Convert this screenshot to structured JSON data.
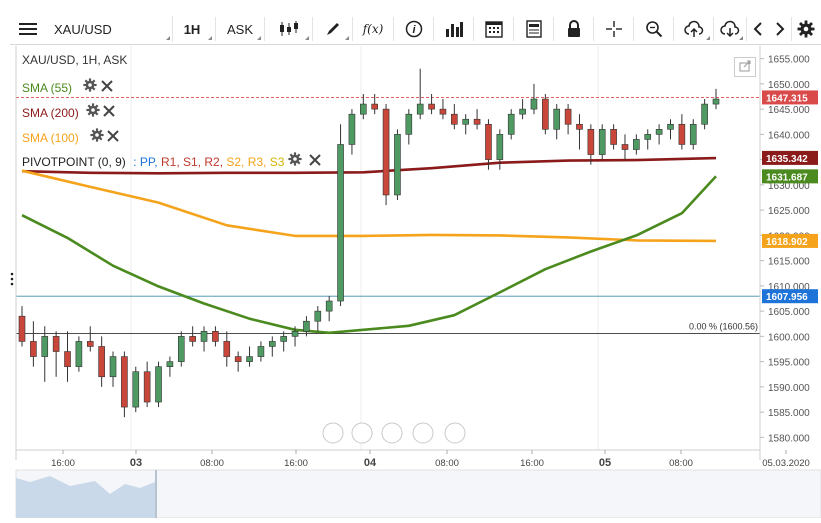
{
  "toolbar": {
    "symbol": "XAU/USD",
    "interval": "1H",
    "price_type": "ASK",
    "buttons": [
      "menu-icon",
      "candles-icon",
      "draw-icon",
      "fx-icon",
      "info-icon",
      "bars-icon",
      "calendar-icon",
      "news-icon",
      "lock-icon",
      "crosshair-icon",
      "zoom-icon",
      "upload-icon",
      "download-icon",
      "prev-icon",
      "next-icon",
      "settings-icon"
    ],
    "fx_label": "f(x)"
  },
  "header": {
    "title": "XAU/USD, 1H, ASK"
  },
  "legend": {
    "sma55": {
      "label": "SMA (55)",
      "color": "#4a8a1e"
    },
    "sma200": {
      "label": "SMA (200)",
      "color": "#8b1a1a"
    },
    "sma100": {
      "label": "SMA (100)",
      "color": "#f5a31a"
    },
    "pivot": {
      "label": "PIVOTPOINT (0, 9)",
      "colon": ":",
      "items": [
        {
          "label": "PP",
          "color": "#1e73d8"
        },
        {
          "label": "R1",
          "color": "#c0392b"
        },
        {
          "label": "S1",
          "color": "#c0392b"
        },
        {
          "label": "R2",
          "color": "#c0392b"
        },
        {
          "label": "S2",
          "color": "#f5a31a"
        },
        {
          "label": "R3",
          "color": "#f5a31a"
        },
        {
          "label": "S3",
          "color": "#d4b400"
        }
      ]
    }
  },
  "chart_data": {
    "type": "candlestick",
    "title": "XAU/USD, 1H, ASK",
    "ylim": [
      1577.5,
      1657.5
    ],
    "y_ticks": [
      1580,
      1585,
      1590,
      1595,
      1600,
      1605,
      1610,
      1615,
      1620,
      1625,
      1630,
      1635,
      1640,
      1645,
      1650,
      1655
    ],
    "y_tick_labels": [
      "1580.000",
      "1585.000",
      "1590.000",
      "1595.000",
      "1600.000",
      "1605.000",
      "1610.000",
      "1615.000",
      "1620.000",
      "1625.000",
      "1630.000",
      "1635.000",
      "1640.000",
      "1645.000",
      "1650.000",
      "1655.000"
    ],
    "x_tick_labels": [
      "16:00",
      "03",
      "08:00",
      "16:00",
      "04",
      "08:00",
      "16:00",
      "05",
      "08:00",
      "05.03.2020"
    ],
    "bold_x_labels": [
      "03",
      "04",
      "05"
    ],
    "price_labels": [
      {
        "text": "1647.315",
        "value": 1647.315,
        "color": "#d94a4a"
      },
      {
        "text": "1635.342",
        "value": 1635.342,
        "color": "#8b1a1a"
      },
      {
        "text": "1631.687",
        "value": 1631.687,
        "color": "#4a8a1e"
      },
      {
        "text": "1618.902",
        "value": 1618.902,
        "color": "#f5a31a"
      },
      {
        "text": "1607.956",
        "value": 1607.956,
        "color": "#1e73d8"
      }
    ],
    "fib_label": "0.00 % (1600.56)",
    "fib_value": 1600.56,
    "up_color": "#4f9a63",
    "down_color": "#c8473a",
    "candles": [
      [
        1604,
        1606,
        1598,
        1599
      ],
      [
        1599,
        1603,
        1594,
        1596
      ],
      [
        1596,
        1602,
        1591,
        1600
      ],
      [
        1600,
        1601,
        1592,
        1597
      ],
      [
        1597,
        1601,
        1591,
        1594
      ],
      [
        1594,
        1600,
        1593,
        1599
      ],
      [
        1599,
        1602,
        1597,
        1598
      ],
      [
        1598,
        1600,
        1590,
        1592
      ],
      [
        1592,
        1597,
        1590,
        1596
      ],
      [
        1596,
        1597,
        1584,
        1586
      ],
      [
        1586,
        1594,
        1585,
        1593
      ],
      [
        1593,
        1595,
        1586,
        1587
      ],
      [
        1587,
        1595,
        1586,
        1594
      ],
      [
        1594,
        1596,
        1592,
        1595
      ],
      [
        1595,
        1601,
        1594,
        1600
      ],
      [
        1600,
        1602,
        1598,
        1599
      ],
      [
        1599,
        1602,
        1597,
        1601
      ],
      [
        1601,
        1602,
        1598,
        1599
      ],
      [
        1599,
        1601,
        1594,
        1596
      ],
      [
        1596,
        1597,
        1593,
        1595
      ],
      [
        1595,
        1598,
        1594,
        1596
      ],
      [
        1596,
        1599,
        1595,
        1598
      ],
      [
        1598,
        1600,
        1596,
        1599
      ],
      [
        1599,
        1601,
        1597,
        1600
      ],
      [
        1600,
        1602,
        1598,
        1601
      ],
      [
        1601,
        1604,
        1600,
        1603
      ],
      [
        1603,
        1606,
        1601,
        1605
      ],
      [
        1605,
        1608,
        1603,
        1607
      ],
      [
        1607,
        1642,
        1606,
        1638
      ],
      [
        1638,
        1645,
        1636,
        1644
      ],
      [
        1644,
        1648,
        1643,
        1646
      ],
      [
        1646,
        1648,
        1644,
        1645
      ],
      [
        1645,
        1646,
        1626,
        1628
      ],
      [
        1628,
        1641,
        1627,
        1640
      ],
      [
        1640,
        1645,
        1638,
        1644
      ],
      [
        1644,
        1653,
        1643,
        1646
      ],
      [
        1646,
        1648,
        1644,
        1645
      ],
      [
        1645,
        1647,
        1643,
        1644
      ],
      [
        1644,
        1646,
        1641,
        1642
      ],
      [
        1642,
        1644,
        1640,
        1643
      ],
      [
        1643,
        1645,
        1641,
        1642
      ],
      [
        1642,
        1643,
        1633,
        1635
      ],
      [
        1635,
        1641,
        1633,
        1640
      ],
      [
        1640,
        1645,
        1639,
        1644
      ],
      [
        1644,
        1647,
        1643,
        1645
      ],
      [
        1645,
        1650,
        1644,
        1647
      ],
      [
        1647,
        1648,
        1640,
        1641
      ],
      [
        1641,
        1646,
        1639,
        1645
      ],
      [
        1645,
        1646,
        1640,
        1642
      ],
      [
        1642,
        1644,
        1637,
        1641
      ],
      [
        1641,
        1642,
        1634,
        1636
      ],
      [
        1636,
        1642,
        1635,
        1641
      ],
      [
        1641,
        1642,
        1637,
        1638
      ],
      [
        1638,
        1640,
        1635,
        1637
      ],
      [
        1637,
        1640,
        1636,
        1639
      ],
      [
        1639,
        1641,
        1637,
        1640
      ],
      [
        1640,
        1642,
        1638,
        1641
      ],
      [
        1641,
        1643,
        1639,
        1642
      ],
      [
        1642,
        1644,
        1637,
        1638
      ],
      [
        1638,
        1643,
        1637,
        1642
      ],
      [
        1642,
        1647,
        1641,
        1646
      ],
      [
        1646,
        1649,
        1645,
        1647
      ]
    ],
    "series": [
      {
        "name": "SMA (200)",
        "color": "#8b1a1a",
        "x": [
          0,
          6,
          12,
          18,
          24,
          30,
          36,
          42,
          48,
          54,
          61
        ],
        "y": [
          1632.7,
          1632.4,
          1632.3,
          1632.4,
          1632.4,
          1632.5,
          1633.3,
          1634.4,
          1634.8,
          1634.9,
          1635.3
        ]
      },
      {
        "name": "SMA (100)",
        "color": "#f5a31a",
        "x": [
          0,
          6,
          12,
          18,
          24,
          30,
          36,
          42,
          48,
          54,
          61
        ],
        "y": [
          1632.8,
          1629.6,
          1626.5,
          1622.0,
          1619.9,
          1619.9,
          1620.1,
          1620.0,
          1619.6,
          1619.0,
          1618.9
        ]
      },
      {
        "name": "SMA (55)",
        "color": "#4a8a1e",
        "x": [
          0,
          4,
          8,
          12,
          16,
          20,
          24,
          27,
          30,
          34,
          38,
          42,
          46,
          50,
          54,
          58,
          61
        ],
        "y": [
          1624.0,
          1619.5,
          1614.0,
          1609.9,
          1606.5,
          1603.5,
          1601.3,
          1600.7,
          1601.3,
          1602.1,
          1604.2,
          1608.7,
          1613.3,
          1616.8,
          1620.0,
          1624.4,
          1631.7
        ]
      }
    ],
    "hlines": [
      {
        "value": 1647.315,
        "color": "#d94a4a",
        "style": "dashed"
      },
      {
        "value": 1607.956,
        "color": "#3c8cb0",
        "style": "solid"
      },
      {
        "value": 1600.56,
        "color": "#333",
        "style": "solid"
      }
    ]
  },
  "nav_buttons": [
    "prev-icon",
    "zoom-out-icon",
    "reset-icon",
    "zoom-in-icon",
    "next-icon"
  ]
}
